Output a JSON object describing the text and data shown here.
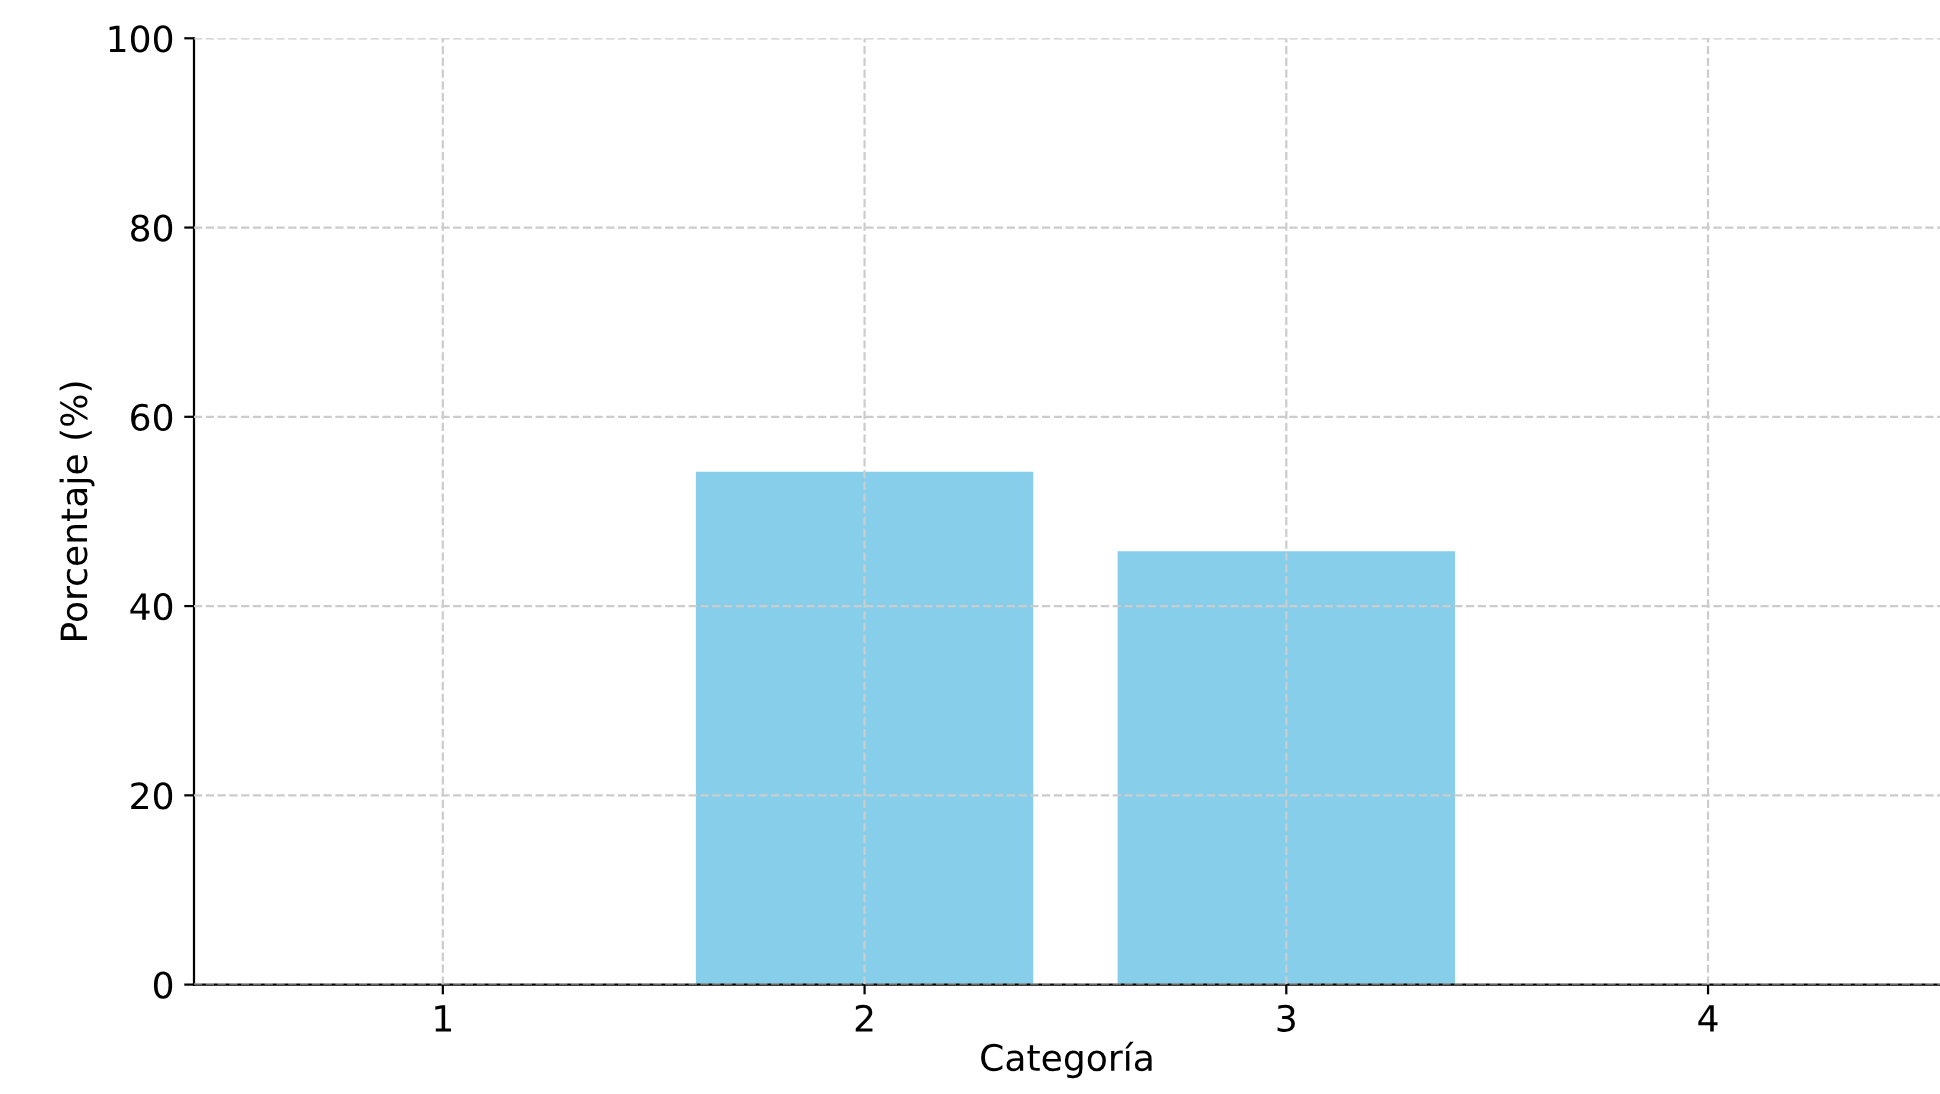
{
  "chart_data": {
    "type": "bar",
    "xlabel": "Categoría",
    "ylabel": "Porcentaje (%)",
    "categories": [
      "1",
      "2",
      "3",
      "4"
    ],
    "values": [
      0,
      54.2,
      45.8,
      0
    ],
    "color": "#87ceeb",
    "ylim": [
      0,
      100
    ],
    "yticks": [
      0,
      20,
      40,
      60,
      80,
      100
    ],
    "grid": true,
    "legend": false
  }
}
